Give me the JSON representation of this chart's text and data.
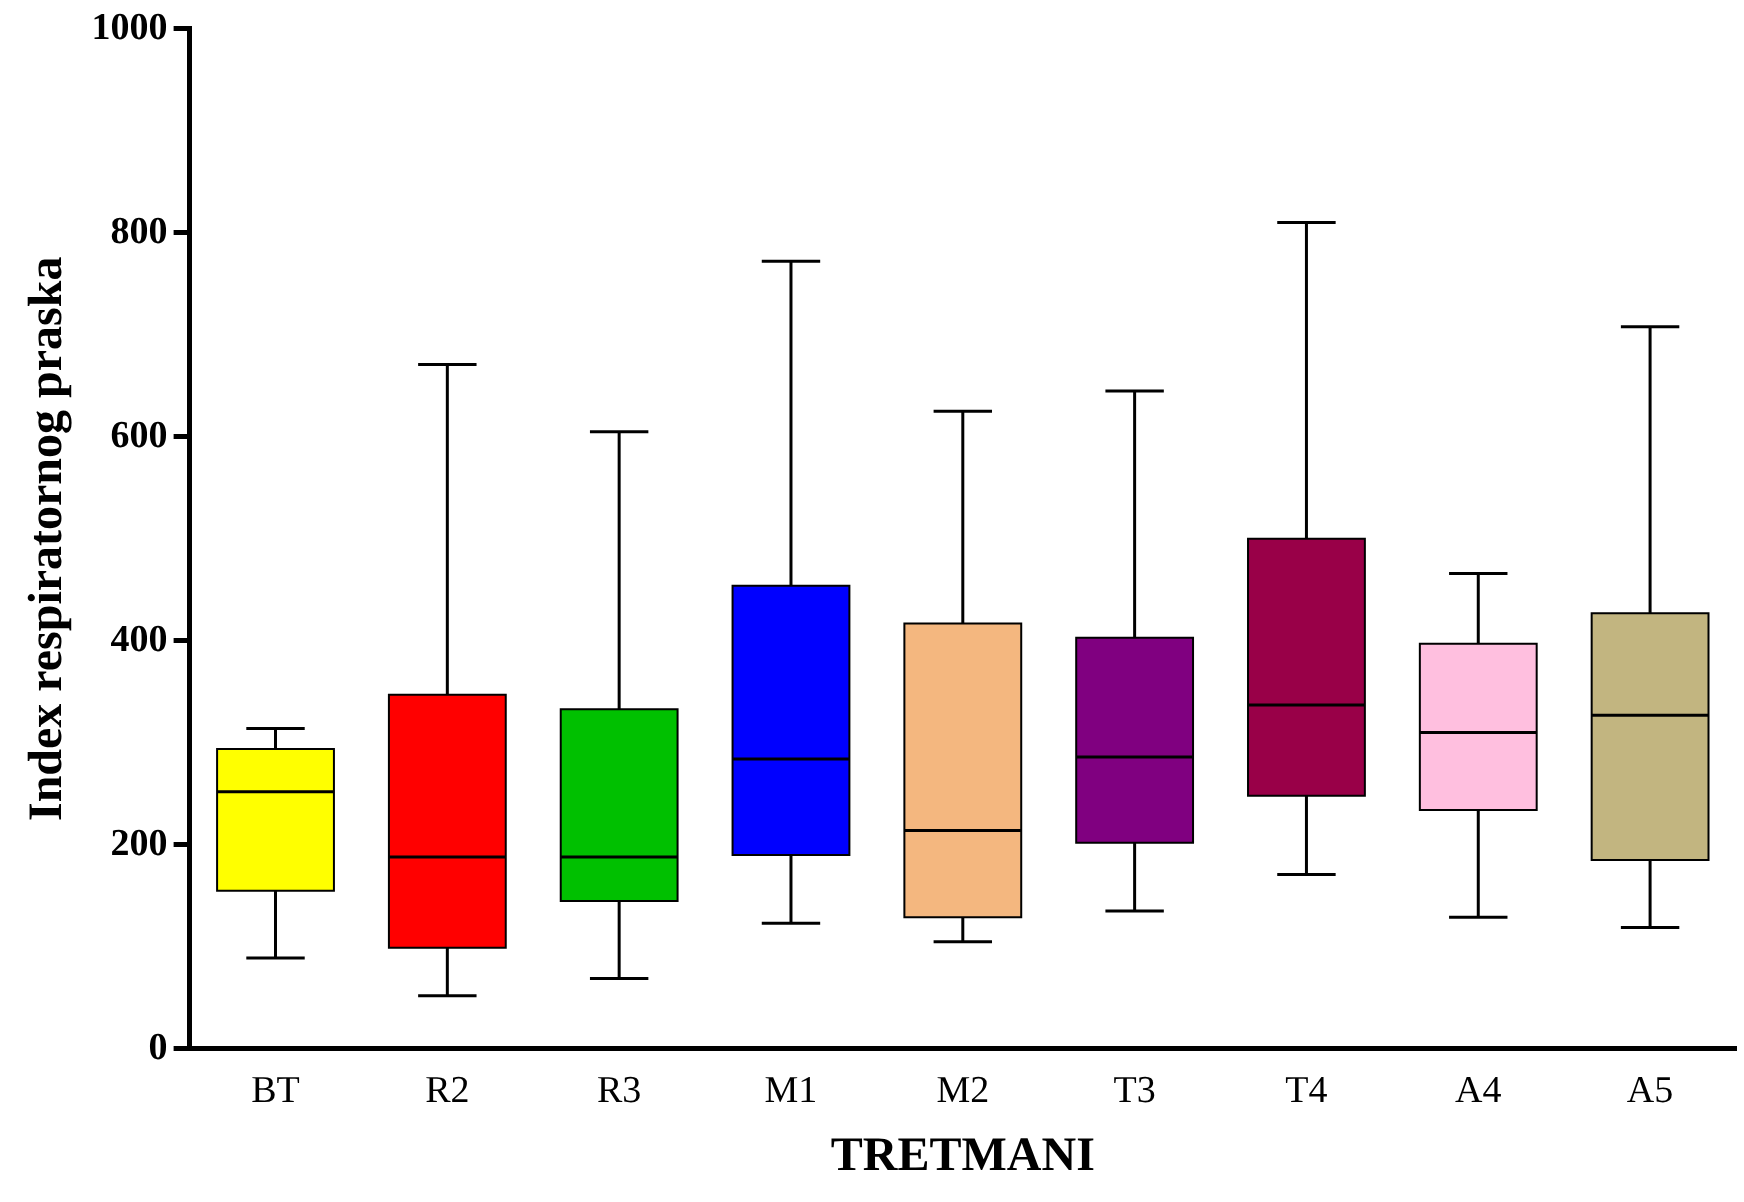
{
  "chart_data": {
    "type": "box",
    "xlabel": "TRETMANI",
    "ylabel": "Index respiratornog praska",
    "categories": [
      "BT",
      "R2",
      "R3",
      "M1",
      "M2",
      "T3",
      "T4",
      "A4",
      "A5"
    ],
    "colors": [
      "#ffff00",
      "#ff0000",
      "#00c000",
      "#0000ff",
      "#f4b77f",
      "#800080",
      "#990048",
      "#ffbfdf",
      "#c2b580"
    ],
    "boxes": [
      {
        "low": 89,
        "q1": 155,
        "median": 252,
        "q3": 294,
        "high": 314
      },
      {
        "low": 52,
        "q1": 99,
        "median": 188,
        "q3": 347,
        "high": 671
      },
      {
        "low": 69,
        "q1": 145,
        "median": 188,
        "q3": 333,
        "high": 605
      },
      {
        "low": 123,
        "q1": 190,
        "median": 284,
        "q3": 454,
        "high": 772
      },
      {
        "low": 105,
        "q1": 129,
        "median": 214,
        "q3": 417,
        "high": 625
      },
      {
        "low": 135,
        "q1": 202,
        "median": 286,
        "q3": 403,
        "high": 645
      },
      {
        "low": 171,
        "q1": 248,
        "median": 337,
        "q3": 500,
        "high": 810
      },
      {
        "low": 129,
        "q1": 234,
        "median": 310,
        "q3": 397,
        "high": 466
      },
      {
        "low": 119,
        "q1": 185,
        "median": 327,
        "q3": 427,
        "high": 708
      }
    ],
    "ylim": [
      0,
      1000
    ],
    "yticks": [
      0,
      200,
      400,
      600,
      800,
      1000
    ],
    "grid": false
  }
}
